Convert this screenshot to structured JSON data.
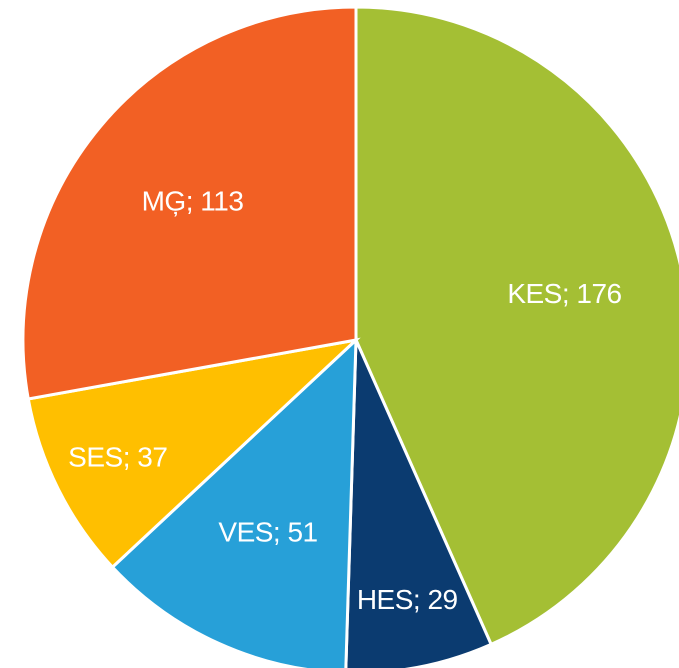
{
  "chart_data": {
    "type": "pie",
    "values": [
      176,
      29,
      51,
      37,
      113
    ],
    "value_labels": [
      "KES; 176",
      "HES; 29",
      "VES; 51",
      "SES; 37",
      "MĢ; 113"
    ],
    "colors": [
      "#a4bf34",
      "#0b3b70",
      "#27a0d8",
      "#ffbf00",
      "#f26024"
    ]
  }
}
